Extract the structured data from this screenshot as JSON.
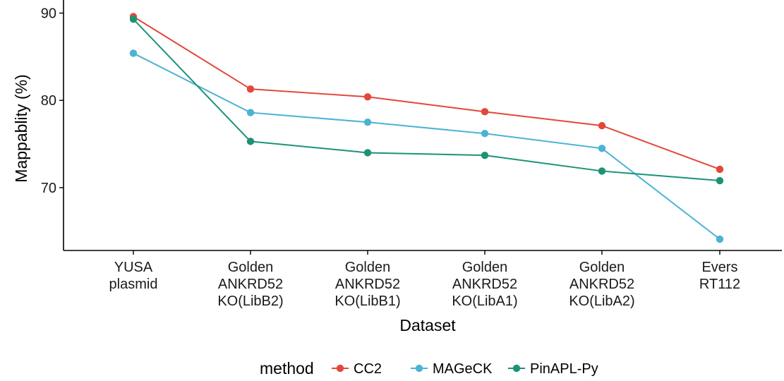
{
  "chart_data": {
    "type": "line",
    "xlabel": "Dataset",
    "ylabel": "Mappablity (%)",
    "ylim": [
      62.8,
      91.5
    ],
    "yticks": [
      70,
      80,
      90
    ],
    "grid": false,
    "legend_position": "bottom",
    "legend_title": "method",
    "categories": [
      [
        "YUSA",
        "plasmid"
      ],
      [
        "Golden",
        "ANKRD52",
        "KO(LibB2)"
      ],
      [
        "Golden",
        "ANKRD52",
        "KO(LibB1)"
      ],
      [
        "Golden",
        "ANKRD52",
        "KO(LibA1)"
      ],
      [
        "Golden",
        "ANKRD52",
        "KO(LibA2)"
      ],
      [
        "Evers",
        "RT112"
      ]
    ],
    "series": [
      {
        "name": "CC2",
        "color": "#e3473b",
        "values": [
          89.6,
          81.3,
          80.4,
          78.7,
          77.1,
          72.1
        ]
      },
      {
        "name": "MAGeCK",
        "color": "#4bb3d4",
        "values": [
          85.4,
          78.6,
          77.5,
          76.2,
          74.5,
          64.1
        ]
      },
      {
        "name": "PinAPL-Py",
        "color": "#1d9277",
        "values": [
          89.3,
          75.3,
          74.0,
          73.7,
          71.9,
          70.8
        ]
      }
    ]
  }
}
